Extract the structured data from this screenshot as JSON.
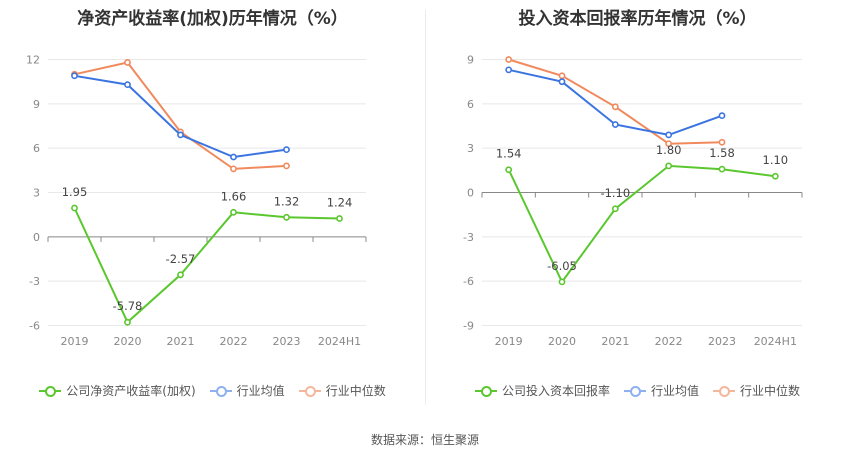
{
  "source_label": "数据来源：恒生聚源",
  "chart_data": [
    {
      "type": "line",
      "title": "净资产收益率(加权)历年情况（%）",
      "categories": [
        "2019",
        "2020",
        "2021",
        "2022",
        "2023",
        "2024H1"
      ],
      "yticks": [
        -6,
        -3,
        0,
        3,
        6,
        9,
        12
      ],
      "ylim": [
        -6,
        12
      ],
      "grid": true,
      "legend_position": "bottom",
      "series": [
        {
          "name": "公司净资产收益率(加权)",
          "color": "#5ac72e",
          "values": [
            1.95,
            -5.78,
            -2.57,
            1.66,
            1.32,
            1.24
          ],
          "labels": [
            "1.95",
            "-5.78",
            "-2.57",
            "1.66",
            "1.32",
            "1.24"
          ]
        },
        {
          "name": "行业均值",
          "color": "#3b74e0",
          "values": [
            10.9,
            10.3,
            6.9,
            5.4,
            5.9,
            null
          ]
        },
        {
          "name": "行业中位数",
          "color": "#f08a5d",
          "values": [
            11.0,
            11.8,
            7.1,
            4.6,
            4.8,
            null
          ]
        }
      ]
    },
    {
      "type": "line",
      "title": "投入资本回报率历年情况（%）",
      "categories": [
        "2019",
        "2020",
        "2021",
        "2022",
        "2023",
        "2024H1"
      ],
      "yticks": [
        -9,
        -6,
        -3,
        0,
        3,
        6,
        9
      ],
      "ylim": [
        -9,
        9
      ],
      "grid": true,
      "legend_position": "bottom",
      "series": [
        {
          "name": "公司投入资本回报率",
          "color": "#5ac72e",
          "values": [
            1.54,
            -6.05,
            -1.1,
            1.8,
            1.58,
            1.1
          ],
          "labels": [
            "1.54",
            "-6.05",
            "-1.10",
            "1.80",
            "1.58",
            "1.10"
          ]
        },
        {
          "name": "行业均值",
          "color": "#3b74e0",
          "values": [
            8.3,
            7.5,
            4.6,
            3.9,
            5.2,
            null
          ]
        },
        {
          "name": "行业中位数",
          "color": "#f08a5d",
          "values": [
            9.0,
            7.9,
            5.8,
            3.3,
            3.4,
            null
          ]
        }
      ]
    }
  ],
  "legend_colors": {
    "company": "#5ac72e",
    "mean": "#8fb0ee",
    "median": "#f5b79c"
  }
}
